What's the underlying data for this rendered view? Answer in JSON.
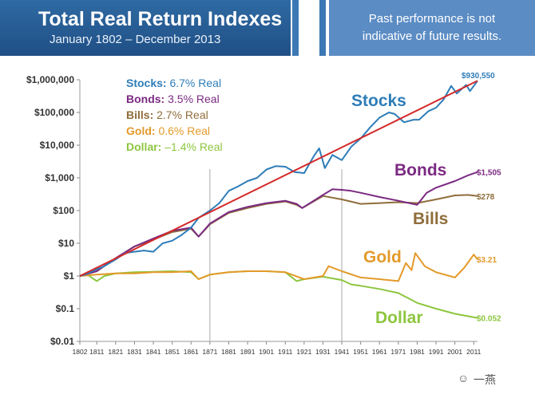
{
  "header": {
    "title": "Total Real Return Indexes",
    "subtitle": "January 1802 – December 2013",
    "disclaimer_line1": "Past performance is not",
    "disclaimer_line2": "indicative of future results."
  },
  "watermark": {
    "icon": "wechat-icon",
    "text": "一燕"
  },
  "chart_data": {
    "type": "line",
    "title": "Total Real Return Indexes",
    "subtitle": "January 1802 – December 2013",
    "xlabel": "",
    "ylabel": "",
    "y_scale": "log",
    "xlim": [
      1802,
      2013
    ],
    "ylim": [
      0.01,
      1000000
    ],
    "y_ticks": [
      0.01,
      0.1,
      1,
      10,
      100,
      1000,
      10000,
      100000,
      1000000
    ],
    "y_tick_labels": [
      "$0.01",
      "$0.1",
      "$1",
      "$10",
      "$100",
      "$1,000",
      "$10,000",
      "$100,000",
      "$1,000,000"
    ],
    "x_ticks": [
      1802,
      1811,
      1821,
      1831,
      1841,
      1851,
      1861,
      1871,
      1881,
      1891,
      1901,
      1911,
      1921,
      1931,
      1941,
      1951,
      1961,
      1971,
      1981,
      1991,
      2001,
      2011
    ],
    "x_tick_labels": [
      "1802",
      "1811",
      "1821",
      "1831",
      "1841",
      "1851",
      "1861",
      "1871",
      "1881",
      "1891",
      "1901",
      "1911",
      "1921",
      "1931",
      "1941",
      "1951",
      "1961",
      "1971",
      "1981",
      "1991",
      "2001",
      "2011"
    ],
    "vertical_lines": [
      1871,
      1941
    ],
    "legend": [
      {
        "name": "Stocks:",
        "value": "6.7% Real",
        "color": "#2e7db8"
      },
      {
        "name": "Bonds:",
        "value": "3.5% Real",
        "color": "#7b2a82"
      },
      {
        "name": "Bills:",
        "value": "2.7% Real",
        "color": "#8f6d3b"
      },
      {
        "name": "Gold:",
        "value": "0.6% Real",
        "color": "#e39a2a"
      },
      {
        "name": "Dollar:",
        "value": "–1.4% Real",
        "color": "#8dc63f"
      }
    ],
    "legend_position": "top-left",
    "trend_line": {
      "color": "#d42a2a",
      "x": [
        1802,
        2013
      ],
      "y": [
        1,
        930550
      ]
    },
    "series": [
      {
        "name": "Stocks",
        "color": "#2e7db8",
        "end_label": "$930,550",
        "x": [
          1802,
          1806,
          1811,
          1815,
          1821,
          1826,
          1831,
          1836,
          1841,
          1846,
          1851,
          1856,
          1861,
          1865,
          1871,
          1876,
          1881,
          1886,
          1891,
          1896,
          1901,
          1906,
          1911,
          1916,
          1921,
          1926,
          1929,
          1932,
          1936,
          1941,
          1946,
          1951,
          1956,
          1961,
          1966,
          1969,
          1974,
          1979,
          1982,
          1987,
          1991,
          1995,
          1999,
          2002,
          2007,
          2009,
          2013
        ],
        "y": [
          1,
          1.2,
          1.6,
          2,
          3.2,
          5,
          5.5,
          6,
          5.5,
          10,
          12,
          18,
          30,
          60,
          100,
          170,
          400,
          550,
          800,
          1000,
          1800,
          2300,
          2200,
          1500,
          1400,
          4500,
          8000,
          2000,
          5000,
          3500,
          9000,
          16000,
          35000,
          70000,
          100000,
          90000,
          50000,
          60000,
          60000,
          110000,
          140000,
          250000,
          650000,
          380000,
          700000,
          450000,
          930550
        ]
      },
      {
        "name": "Bonds",
        "color": "#7b2a82",
        "end_label": "$1,505",
        "x": [
          1802,
          1811,
          1821,
          1831,
          1841,
          1851,
          1861,
          1865,
          1871,
          1881,
          1891,
          1901,
          1911,
          1917,
          1920,
          1931,
          1936,
          1941,
          1946,
          1951,
          1961,
          1971,
          1981,
          1986,
          1991,
          2001,
          2008,
          2013
        ],
        "y": [
          1,
          1.4,
          3.5,
          8,
          14,
          24,
          30,
          16,
          40,
          90,
          130,
          170,
          200,
          160,
          120,
          300,
          450,
          430,
          400,
          350,
          260,
          200,
          150,
          350,
          500,
          800,
          1200,
          1505
        ]
      },
      {
        "name": "Bills",
        "color": "#8f6d3b",
        "end_label": "$278",
        "x": [
          1802,
          1811,
          1821,
          1831,
          1841,
          1851,
          1861,
          1865,
          1871,
          1881,
          1891,
          1901,
          1911,
          1917,
          1920,
          1931,
          1941,
          1951,
          1961,
          1971,
          1981,
          1991,
          2001,
          2008,
          2013
        ],
        "y": [
          1,
          1.4,
          3.5,
          8,
          13,
          22,
          28,
          16,
          38,
          85,
          120,
          160,
          190,
          150,
          120,
          280,
          220,
          160,
          170,
          180,
          170,
          220,
          290,
          300,
          278
        ]
      },
      {
        "name": "Gold",
        "color": "#e39a2a",
        "end_label": "$3.21",
        "x": [
          1802,
          1811,
          1821,
          1831,
          1841,
          1851,
          1861,
          1865,
          1871,
          1881,
          1891,
          1901,
          1911,
          1921,
          1931,
          1934,
          1941,
          1951,
          1961,
          1971,
          1975,
          1978,
          1980,
          1985,
          1991,
          2001,
          2006,
          2011,
          2013
        ],
        "y": [
          1,
          1.1,
          1.2,
          1.2,
          1.3,
          1.3,
          1.4,
          0.8,
          1.1,
          1.3,
          1.4,
          1.4,
          1.3,
          0.8,
          1.0,
          2.0,
          1.4,
          0.9,
          0.8,
          0.7,
          2.5,
          1.5,
          5,
          2.0,
          1.3,
          0.9,
          1.8,
          4.5,
          3.21
        ]
      },
      {
        "name": "Dollar",
        "color": "#8dc63f",
        "end_label": "$0.052",
        "x": [
          1802,
          1806,
          1811,
          1815,
          1821,
          1831,
          1841,
          1851,
          1861,
          1865,
          1871,
          1881,
          1891,
          1901,
          1911,
          1917,
          1921,
          1931,
          1941,
          1946,
          1951,
          1961,
          1971,
          1981,
          1991,
          2001,
          2013
        ],
        "y": [
          1,
          1.1,
          0.7,
          1.0,
          1.2,
          1.3,
          1.35,
          1.4,
          1.3,
          0.8,
          1.1,
          1.3,
          1.4,
          1.4,
          1.3,
          0.7,
          0.8,
          0.95,
          0.75,
          0.55,
          0.5,
          0.4,
          0.3,
          0.15,
          0.1,
          0.07,
          0.052
        ]
      }
    ],
    "series_labels": [
      {
        "text": "Stocks",
        "color": "#2e7db8"
      },
      {
        "text": "Bonds",
        "color": "#7b2a82"
      },
      {
        "text": "Bills",
        "color": "#8f6d3b"
      },
      {
        "text": "Gold",
        "color": "#e39a2a"
      },
      {
        "text": "Dollar",
        "color": "#8dc63f"
      }
    ]
  }
}
